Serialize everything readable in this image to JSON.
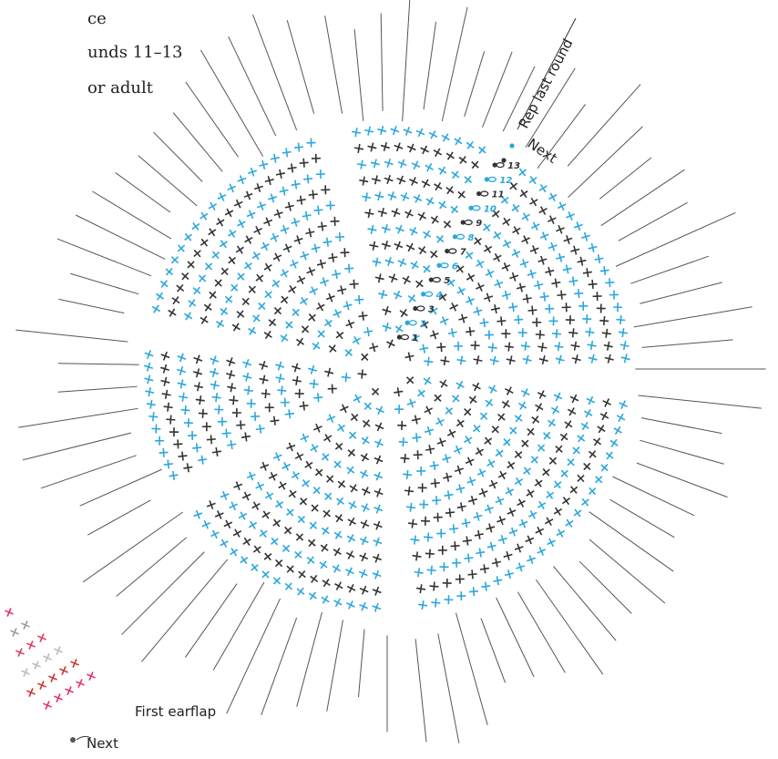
{
  "header": {
    "lines": [
      "ce",
      "unds 11–13",
      "or adult"
    ]
  },
  "diagram": {
    "repeat_label": "Rep last round",
    "next_label": "Next",
    "round_markers": [
      "1",
      "2",
      "3",
      "4",
      "5",
      "6",
      "7",
      "8",
      "9",
      "10",
      "11",
      "12",
      "13"
    ]
  },
  "earflap": {
    "label": "First earflap",
    "next_label": "Next"
  }
}
